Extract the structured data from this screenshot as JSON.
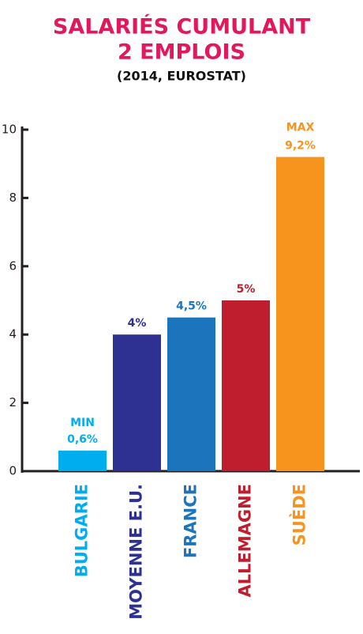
{
  "chart_data": {
    "type": "bar",
    "title": [
      "SALARIÉS CUMULANT",
      "2 EMPLOIS"
    ],
    "subtitle": "(2014, EUROSTAT)",
    "categories": [
      "BULGARIE",
      "MOYENNE E.U.",
      "FRANCE",
      "ALLEMAGNE",
      "SUÈDE"
    ],
    "values": [
      0.6,
      4,
      4.5,
      5,
      9.2
    ],
    "value_labels": [
      "0,6%",
      "4%",
      "4,5%",
      "5%",
      "9,2%"
    ],
    "annotations": {
      "min": "MIN",
      "max": "MAX"
    },
    "colors": [
      "#00aeef",
      "#2e3192",
      "#1c75bc",
      "#be1e2d",
      "#f7941d"
    ],
    "ylim": [
      0,
      10
    ],
    "yticks": [
      0,
      2,
      4,
      6,
      8,
      10
    ],
    "grid": false
  }
}
